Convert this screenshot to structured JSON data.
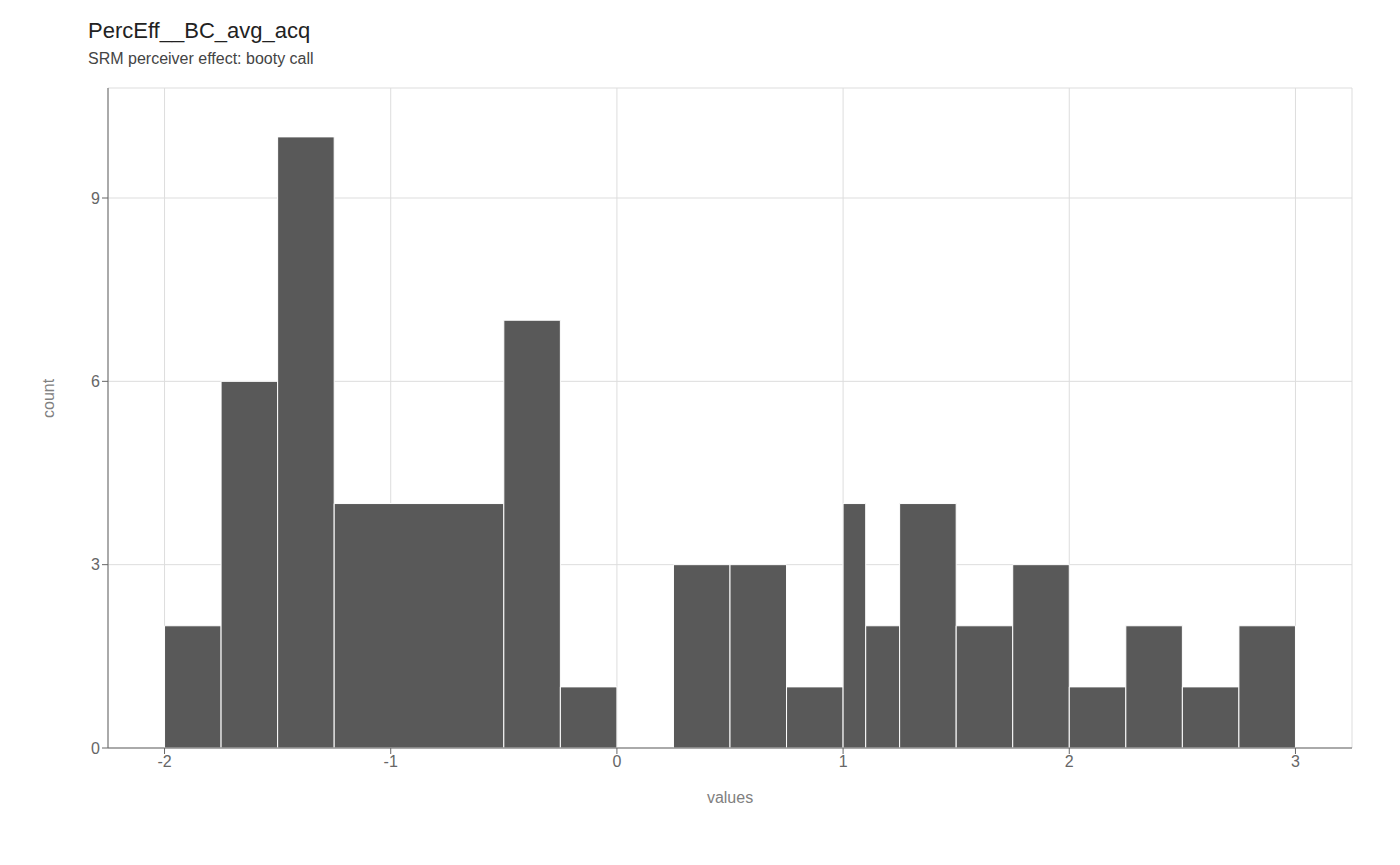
{
  "chart_data": {
    "type": "histogram",
    "title": "PercEff__BC_avg_acq",
    "subtitle": "SRM perceiver effect: booty call",
    "xlabel": "values",
    "ylabel": "count",
    "bins": [
      -2.0,
      -1.75,
      -1.5,
      -1.25,
      -0.5,
      -0.25,
      0.0,
      0.25,
      0.5,
      0.75,
      1.0,
      1.1,
      1.25,
      1.5,
      1.75,
      2.0,
      2.25,
      2.5,
      2.75,
      3.0
    ],
    "values": [
      2,
      6,
      10,
      4,
      7,
      1,
      0,
      3,
      3,
      1,
      4,
      2,
      4,
      2,
      3,
      1,
      2,
      1,
      2
    ],
    "color": "#595959",
    "xlim": [
      -2.25,
      3.25
    ],
    "ylim": [
      0,
      10.8
    ],
    "xticks": [
      -2,
      -1,
      0,
      1,
      2,
      3
    ],
    "yticks": [
      0,
      3,
      6,
      9
    ],
    "grid": true
  }
}
